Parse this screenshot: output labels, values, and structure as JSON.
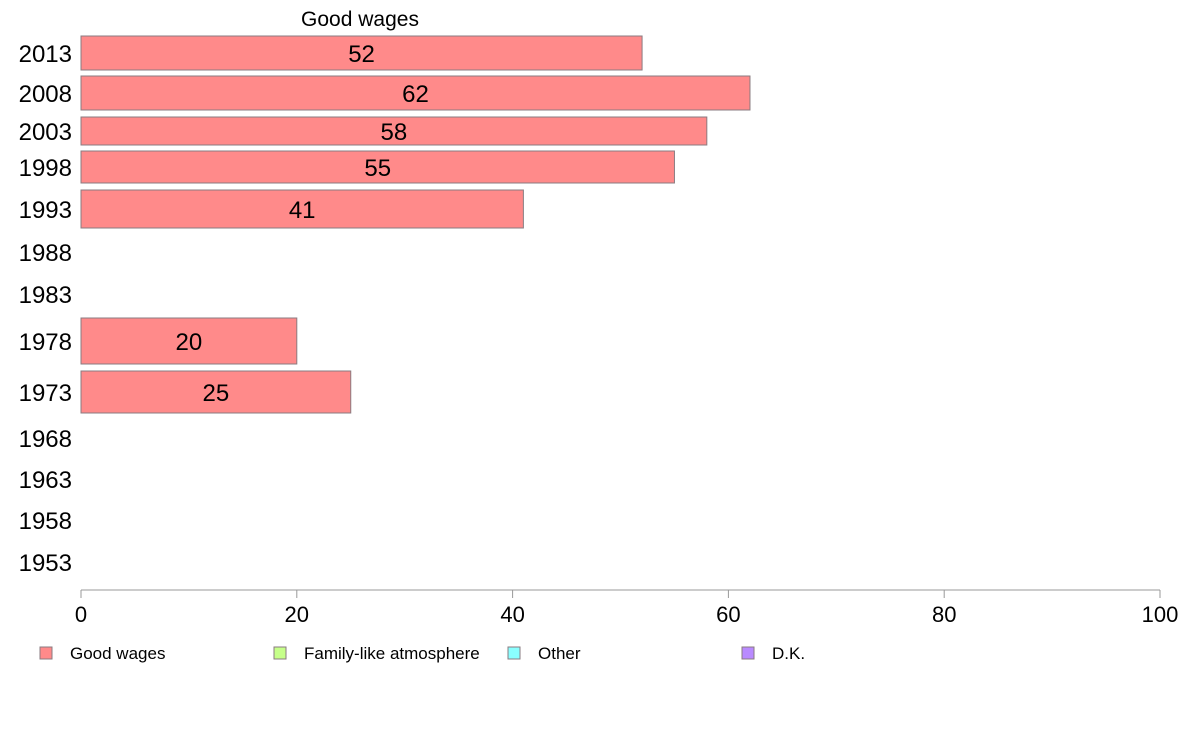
{
  "chart_data": {
    "type": "bar",
    "orientation": "horizontal",
    "title": "Good wages",
    "categories": [
      "2013",
      "2008",
      "2003",
      "1998",
      "1993",
      "1988",
      "1983",
      "1978",
      "1973",
      "1968",
      "1963",
      "1958",
      "1953"
    ],
    "series": [
      {
        "name": "Good wages",
        "color": "#ff8a8a",
        "values": [
          52,
          62,
          58,
          55,
          41,
          null,
          null,
          20,
          25,
          null,
          null,
          null,
          null
        ]
      }
    ],
    "xlim": [
      0,
      100
    ],
    "xticks": [
      0,
      20,
      40,
      60,
      80,
      100
    ],
    "grid": false,
    "legend": {
      "placement": "bottom",
      "entries": [
        {
          "label": "Good wages",
          "color": "#ff8a8a"
        },
        {
          "label": "Family-like atmosphere",
          "color": "#c6ff8a"
        },
        {
          "label": "Other",
          "color": "#8affff"
        },
        {
          "label": "D.K.",
          "color": "#b98aff"
        }
      ]
    }
  }
}
